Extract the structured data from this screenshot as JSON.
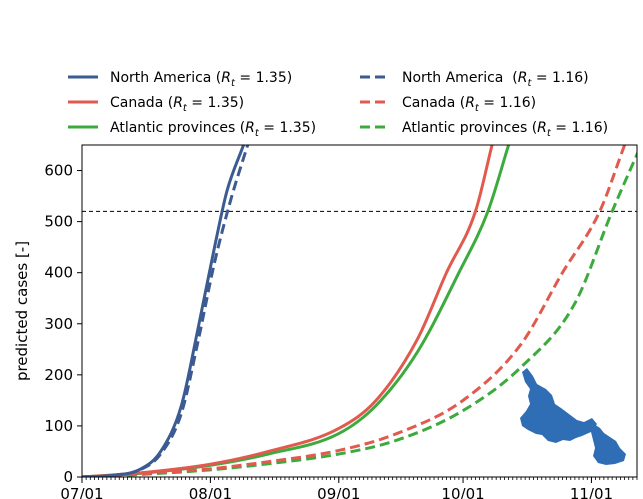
{
  "chart_data": {
    "type": "line",
    "title": "",
    "xlabel": "",
    "ylabel": "predicted cases [-]",
    "x_ticks": [
      "07/01",
      "08/01",
      "09/01",
      "10/01",
      "11/01"
    ],
    "x_range": [
      "2020-07-01",
      "2020-11-10"
    ],
    "ylim": [
      0,
      650
    ],
    "y_ticks": [
      0,
      100,
      200,
      300,
      400,
      500,
      600
    ],
    "reference_line": {
      "y": 520,
      "style": "dashed",
      "color": "#000000"
    },
    "grid": false,
    "legend_position": "top",
    "legend_columns": 2,
    "inset_image": "newfoundland-and-labrador-map",
    "series": [
      {
        "legend_label": "North America (R_t = 1.35)",
        "color": "#3B5B92",
        "dash": "solid",
        "points": [
          [
            "2020-07-01",
            0
          ],
          [
            "2020-07-08",
            3
          ],
          [
            "2020-07-15",
            15
          ],
          [
            "2020-07-20",
            50
          ],
          [
            "2020-07-25",
            140
          ],
          [
            "2020-07-29",
            290
          ],
          [
            "2020-08-02",
            450
          ],
          [
            "2020-08-05",
            560
          ],
          [
            "2020-08-09",
            650
          ]
        ]
      },
      {
        "legend_label": "North America  (R_t = 1.16)",
        "color": "#3B5B92",
        "dash": "dashed",
        "points": [
          [
            "2020-07-01",
            0
          ],
          [
            "2020-07-08",
            3
          ],
          [
            "2020-07-15",
            14
          ],
          [
            "2020-07-20",
            45
          ],
          [
            "2020-07-25",
            125
          ],
          [
            "2020-07-29",
            265
          ],
          [
            "2020-08-02",
            420
          ],
          [
            "2020-08-06",
            545
          ],
          [
            "2020-08-10",
            650
          ]
        ]
      },
      {
        "legend_label": "Canada (R_t = 1.35)",
        "color": "#E05A4E",
        "dash": "solid",
        "points": [
          [
            "2020-07-01",
            0
          ],
          [
            "2020-07-15",
            8
          ],
          [
            "2020-08-01",
            25
          ],
          [
            "2020-08-15",
            50
          ],
          [
            "2020-09-01",
            95
          ],
          [
            "2020-09-10",
            150
          ],
          [
            "2020-09-20",
            270
          ],
          [
            "2020-09-27",
            400
          ],
          [
            "2020-10-04",
            520
          ],
          [
            "2020-10-08",
            650
          ]
        ]
      },
      {
        "legend_label": "Canada (R_t = 1.16)",
        "color": "#E05A4E",
        "dash": "dashed",
        "points": [
          [
            "2020-07-01",
            0
          ],
          [
            "2020-07-15",
            6
          ],
          [
            "2020-08-01",
            16
          ],
          [
            "2020-08-15",
            30
          ],
          [
            "2020-09-01",
            52
          ],
          [
            "2020-09-15",
            85
          ],
          [
            "2020-10-01",
            150
          ],
          [
            "2020-10-15",
            260
          ],
          [
            "2020-10-25",
            400
          ],
          [
            "2020-11-03",
            520
          ],
          [
            "2020-11-09",
            650
          ]
        ]
      },
      {
        "legend_label": "Atlantic provinces (R_t = 1.35)",
        "color": "#3CAA3C",
        "dash": "solid",
        "points": [
          [
            "2020-07-01",
            0
          ],
          [
            "2020-07-15",
            7
          ],
          [
            "2020-08-01",
            23
          ],
          [
            "2020-08-15",
            45
          ],
          [
            "2020-09-01",
            85
          ],
          [
            "2020-09-10",
            140
          ],
          [
            "2020-09-20",
            245
          ],
          [
            "2020-09-30",
            400
          ],
          [
            "2020-10-07",
            520
          ],
          [
            "2020-10-12",
            650
          ]
        ]
      },
      {
        "legend_label": "Atlantic provinces (R_t = 1.16)",
        "color": "#3CAA3C",
        "dash": "dashed",
        "points": [
          [
            "2020-07-01",
            0
          ],
          [
            "2020-07-15",
            5
          ],
          [
            "2020-08-01",
            14
          ],
          [
            "2020-08-15",
            26
          ],
          [
            "2020-09-01",
            45
          ],
          [
            "2020-09-15",
            72
          ],
          [
            "2020-10-01",
            130
          ],
          [
            "2020-10-15",
            215
          ],
          [
            "2020-10-28",
            340
          ],
          [
            "2020-11-06",
            520
          ],
          [
            "2020-11-13",
            650
          ]
        ]
      }
    ]
  }
}
